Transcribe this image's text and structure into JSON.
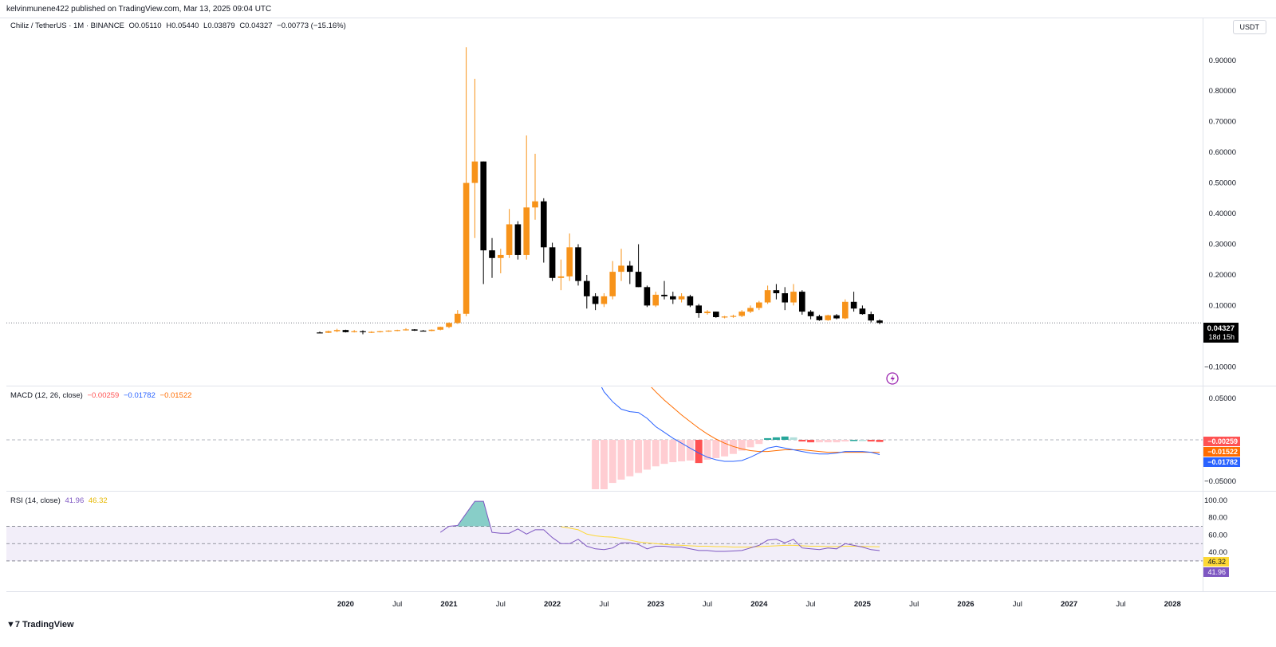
{
  "publisher": "kelvinmunene422 published on TradingView.com, Mar 13, 2025 09:04 UTC",
  "legend": {
    "symbol": "Chiliz / TetherUS · 1M · BINANCE",
    "open": "O0.05110",
    "high": "H0.05440",
    "low": "L0.03879",
    "close": "C0.04327",
    "change": "−0.00773 (−15.16%)"
  },
  "currency_button": "USDT",
  "price_tag": {
    "value": "0.04327",
    "countdown": "18d 15h"
  },
  "macd_legend": {
    "title": "MACD (12, 26, close)",
    "hist": "−0.00259",
    "macd": "−0.01782",
    "signal": "−0.01522"
  },
  "macd_tags": {
    "hist": "−0.00259",
    "signal": "−0.01522",
    "macd": "−0.01782"
  },
  "rsi_legend": {
    "title": "RSI (14, close)",
    "rsi": "41.96",
    "ma": "46.32"
  },
  "rsi_tags": {
    "ma": "46.32",
    "rsi": "41.96"
  },
  "footer_brand": "TradingView",
  "colors": {
    "up": "#f7931a",
    "down": "#000000",
    "macd_line": "#2962ff",
    "signal_line": "#ff6d00",
    "hist_neg": "#ff5252",
    "hist_neg_light": "#ffcdd2",
    "hist_pos": "#26a69a",
    "hist_pos_light": "#b2dfdb",
    "rsi_line": "#7e57c2",
    "rsi_ma": "#fdd835"
  },
  "chart_data": [
    {
      "type": "candlestick",
      "title": "Chiliz / TetherUS · 1M · BINANCE",
      "y_ticks": [
        "0.90000",
        "0.80000",
        "0.70000",
        "0.60000",
        "0.50000",
        "0.40000",
        "0.30000",
        "0.20000",
        "0.10000",
        "0.00000",
        "−0.10000"
      ],
      "x_ticks": [
        "2020",
        "Jul",
        "2021",
        "Jul",
        "2022",
        "Jul",
        "2023",
        "Jul",
        "2024",
        "Jul",
        "2025",
        "Jul",
        "2026",
        "Jul",
        "2027",
        "Jul",
        "2028"
      ],
      "ylim": [
        -0.12,
        0.98
      ],
      "candles": [
        {
          "d": "2019-10",
          "o": 0.012,
          "h": 0.015,
          "l": 0.01,
          "c": 0.011
        },
        {
          "d": "2019-11",
          "o": 0.011,
          "h": 0.018,
          "l": 0.01,
          "c": 0.016
        },
        {
          "d": "2019-12",
          "o": 0.016,
          "h": 0.024,
          "l": 0.013,
          "c": 0.02
        },
        {
          "d": "2020-01",
          "o": 0.02,
          "h": 0.021,
          "l": 0.012,
          "c": 0.013
        },
        {
          "d": "2020-02",
          "o": 0.013,
          "h": 0.02,
          "l": 0.012,
          "c": 0.016
        },
        {
          "d": "2020-03",
          "o": 0.016,
          "h": 0.019,
          "l": 0.006,
          "c": 0.013
        },
        {
          "d": "2020-04",
          "o": 0.013,
          "h": 0.016,
          "l": 0.01,
          "c": 0.014
        },
        {
          "d": "2020-05",
          "o": 0.014,
          "h": 0.017,
          "l": 0.012,
          "c": 0.016
        },
        {
          "d": "2020-06",
          "o": 0.016,
          "h": 0.019,
          "l": 0.014,
          "c": 0.018
        },
        {
          "d": "2020-07",
          "o": 0.018,
          "h": 0.021,
          "l": 0.016,
          "c": 0.02
        },
        {
          "d": "2020-08",
          "o": 0.02,
          "h": 0.026,
          "l": 0.018,
          "c": 0.022
        },
        {
          "d": "2020-09",
          "o": 0.022,
          "h": 0.023,
          "l": 0.017,
          "c": 0.018
        },
        {
          "d": "2020-10",
          "o": 0.018,
          "h": 0.02,
          "l": 0.016,
          "c": 0.017
        },
        {
          "d": "2020-11",
          "o": 0.017,
          "h": 0.022,
          "l": 0.016,
          "c": 0.021
        },
        {
          "d": "2020-12",
          "o": 0.021,
          "h": 0.031,
          "l": 0.019,
          "c": 0.03
        },
        {
          "d": "2021-01",
          "o": 0.03,
          "h": 0.045,
          "l": 0.026,
          "c": 0.043
        },
        {
          "d": "2021-02",
          "o": 0.043,
          "h": 0.085,
          "l": 0.04,
          "c": 0.073
        },
        {
          "d": "2021-03",
          "o": 0.073,
          "h": 0.943,
          "l": 0.065,
          "c": 0.5
        },
        {
          "d": "2021-04",
          "o": 0.5,
          "h": 0.84,
          "l": 0.32,
          "c": 0.57
        },
        {
          "d": "2021-05",
          "o": 0.57,
          "h": 0.57,
          "l": 0.17,
          "c": 0.28
        },
        {
          "d": "2021-06",
          "o": 0.28,
          "h": 0.32,
          "l": 0.19,
          "c": 0.255
        },
        {
          "d": "2021-07",
          "o": 0.255,
          "h": 0.285,
          "l": 0.205,
          "c": 0.265
        },
        {
          "d": "2021-08",
          "o": 0.265,
          "h": 0.415,
          "l": 0.255,
          "c": 0.365
        },
        {
          "d": "2021-09",
          "o": 0.365,
          "h": 0.375,
          "l": 0.25,
          "c": 0.265
        },
        {
          "d": "2021-10",
          "o": 0.265,
          "h": 0.655,
          "l": 0.25,
          "c": 0.42
        },
        {
          "d": "2021-11",
          "o": 0.42,
          "h": 0.595,
          "l": 0.38,
          "c": 0.44
        },
        {
          "d": "2021-12",
          "o": 0.44,
          "h": 0.45,
          "l": 0.24,
          "c": 0.29
        },
        {
          "d": "2022-01",
          "o": 0.29,
          "h": 0.305,
          "l": 0.18,
          "c": 0.19
        },
        {
          "d": "2022-02",
          "o": 0.19,
          "h": 0.25,
          "l": 0.15,
          "c": 0.195
        },
        {
          "d": "2022-03",
          "o": 0.195,
          "h": 0.335,
          "l": 0.18,
          "c": 0.29
        },
        {
          "d": "2022-04",
          "o": 0.29,
          "h": 0.3,
          "l": 0.165,
          "c": 0.18
        },
        {
          "d": "2022-05",
          "o": 0.18,
          "h": 0.2,
          "l": 0.09,
          "c": 0.13
        },
        {
          "d": "2022-06",
          "o": 0.13,
          "h": 0.14,
          "l": 0.085,
          "c": 0.105
        },
        {
          "d": "2022-07",
          "o": 0.105,
          "h": 0.14,
          "l": 0.095,
          "c": 0.13
        },
        {
          "d": "2022-08",
          "o": 0.13,
          "h": 0.245,
          "l": 0.12,
          "c": 0.21
        },
        {
          "d": "2022-09",
          "o": 0.21,
          "h": 0.285,
          "l": 0.18,
          "c": 0.23
        },
        {
          "d": "2022-10",
          "o": 0.23,
          "h": 0.245,
          "l": 0.17,
          "c": 0.21
        },
        {
          "d": "2022-11",
          "o": 0.21,
          "h": 0.3,
          "l": 0.16,
          "c": 0.16
        },
        {
          "d": "2022-12",
          "o": 0.16,
          "h": 0.165,
          "l": 0.095,
          "c": 0.1
        },
        {
          "d": "2023-01",
          "o": 0.1,
          "h": 0.145,
          "l": 0.095,
          "c": 0.135
        },
        {
          "d": "2023-02",
          "o": 0.135,
          "h": 0.18,
          "l": 0.12,
          "c": 0.13
        },
        {
          "d": "2023-03",
          "o": 0.13,
          "h": 0.145,
          "l": 0.105,
          "c": 0.12
        },
        {
          "d": "2023-04",
          "o": 0.12,
          "h": 0.14,
          "l": 0.11,
          "c": 0.13
        },
        {
          "d": "2023-05",
          "o": 0.13,
          "h": 0.135,
          "l": 0.095,
          "c": 0.1
        },
        {
          "d": "2023-06",
          "o": 0.1,
          "h": 0.105,
          "l": 0.06,
          "c": 0.075
        },
        {
          "d": "2023-07",
          "o": 0.075,
          "h": 0.085,
          "l": 0.07,
          "c": 0.08
        },
        {
          "d": "2023-08",
          "o": 0.08,
          "h": 0.08,
          "l": 0.06,
          "c": 0.062
        },
        {
          "d": "2023-09",
          "o": 0.062,
          "h": 0.066,
          "l": 0.058,
          "c": 0.064
        },
        {
          "d": "2023-10",
          "o": 0.064,
          "h": 0.07,
          "l": 0.06,
          "c": 0.066
        },
        {
          "d": "2023-11",
          "o": 0.066,
          "h": 0.085,
          "l": 0.062,
          "c": 0.08
        },
        {
          "d": "2023-12",
          "o": 0.08,
          "h": 0.1,
          "l": 0.075,
          "c": 0.092
        },
        {
          "d": "2024-01",
          "o": 0.092,
          "h": 0.115,
          "l": 0.085,
          "c": 0.11
        },
        {
          "d": "2024-02",
          "o": 0.11,
          "h": 0.165,
          "l": 0.105,
          "c": 0.15
        },
        {
          "d": "2024-03",
          "o": 0.15,
          "h": 0.17,
          "l": 0.12,
          "c": 0.14
        },
        {
          "d": "2024-04",
          "o": 0.14,
          "h": 0.16,
          "l": 0.085,
          "c": 0.11
        },
        {
          "d": "2024-05",
          "o": 0.11,
          "h": 0.17,
          "l": 0.1,
          "c": 0.145
        },
        {
          "d": "2024-06",
          "o": 0.145,
          "h": 0.15,
          "l": 0.07,
          "c": 0.08
        },
        {
          "d": "2024-07",
          "o": 0.08,
          "h": 0.085,
          "l": 0.055,
          "c": 0.065
        },
        {
          "d": "2024-08",
          "o": 0.065,
          "h": 0.07,
          "l": 0.05,
          "c": 0.052
        },
        {
          "d": "2024-09",
          "o": 0.052,
          "h": 0.07,
          "l": 0.05,
          "c": 0.068
        },
        {
          "d": "2024-10",
          "o": 0.068,
          "h": 0.072,
          "l": 0.055,
          "c": 0.058
        },
        {
          "d": "2024-11",
          "o": 0.058,
          "h": 0.12,
          "l": 0.055,
          "c": 0.112
        },
        {
          "d": "2024-12",
          "o": 0.112,
          "h": 0.145,
          "l": 0.08,
          "c": 0.09
        },
        {
          "d": "2025-01",
          "o": 0.09,
          "h": 0.1,
          "l": 0.07,
          "c": 0.072
        },
        {
          "d": "2025-02",
          "o": 0.072,
          "h": 0.08,
          "l": 0.045,
          "c": 0.051
        },
        {
          "d": "2025-03",
          "o": 0.0511,
          "h": 0.0544,
          "l": 0.03879,
          "c": 0.04327
        }
      ],
      "last_price": 0.04327
    },
    {
      "type": "macd",
      "title": "MACD (12, 26, close)",
      "y_ticks": [
        "0.05000",
        "−0.05000"
      ],
      "ylim": [
        -0.068,
        0.068
      ],
      "months": [
        "2022-06",
        "2022-07",
        "2022-08",
        "2022-09",
        "2022-10",
        "2022-11",
        "2022-12",
        "2023-01",
        "2023-02",
        "2023-03",
        "2023-04",
        "2023-05",
        "2023-06",
        "2023-07",
        "2023-08",
        "2023-09",
        "2023-10",
        "2023-11",
        "2023-12",
        "2024-01",
        "2024-02",
        "2024-03",
        "2024-04",
        "2024-05",
        "2024-06",
        "2024-07",
        "2024-08",
        "2024-09",
        "2024-10",
        "2024-11",
        "2024-12",
        "2025-01",
        "2025-02",
        "2025-03"
      ],
      "macd": [
        0.078,
        0.058,
        0.046,
        0.037,
        0.034,
        0.033,
        0.026,
        0.016,
        0.009,
        0.002,
        -0.004,
        -0.01,
        -0.016,
        -0.021,
        -0.024,
        -0.026,
        -0.026,
        -0.025,
        -0.021,
        -0.016,
        -0.01,
        -0.008,
        -0.01,
        -0.012,
        -0.014,
        -0.016,
        -0.017,
        -0.017,
        -0.016,
        -0.014,
        -0.014,
        -0.014,
        -0.015,
        -0.0178
      ],
      "signal": [
        0.16,
        0.139,
        0.12,
        0.105,
        0.092,
        0.08,
        0.069,
        0.058,
        0.048,
        0.039,
        0.03,
        0.022,
        0.014,
        0.007,
        0.001,
        -0.004,
        -0.008,
        -0.011,
        -0.013,
        -0.014,
        -0.014,
        -0.013,
        -0.012,
        -0.012,
        -0.012,
        -0.013,
        -0.014,
        -0.015,
        -0.015,
        -0.015,
        -0.015,
        -0.015,
        -0.015,
        -0.01522
      ],
      "histogram": [
        -0.068,
        -0.061,
        -0.052,
        -0.048,
        -0.044,
        -0.04,
        -0.036,
        -0.032,
        -0.029,
        -0.027,
        -0.026,
        -0.025,
        -0.028,
        -0.024,
        -0.022,
        -0.02,
        -0.017,
        -0.013,
        -0.009,
        -0.005,
        0.002,
        0.003,
        0.004,
        0.003,
        -0.002,
        -0.003,
        -0.003,
        -0.003,
        -0.003,
        -0.002,
        0.0,
        0.0,
        -0.002,
        -0.00259
      ]
    },
    {
      "type": "rsi",
      "title": "RSI (14, close)",
      "y_ticks": [
        "100.00",
        "80.00",
        "60.00",
        "40.00"
      ],
      "ylim": [
        20,
        105
      ],
      "bands": [
        70,
        50,
        30
      ],
      "months": [
        "2020-12",
        "2021-01",
        "2021-02",
        "2021-03",
        "2021-04",
        "2021-05",
        "2021-06",
        "2021-07",
        "2021-08",
        "2021-09",
        "2021-10",
        "2021-11",
        "2021-12",
        "2022-01",
        "2022-02",
        "2022-03",
        "2022-04",
        "2022-05",
        "2022-06",
        "2022-07",
        "2022-08",
        "2022-09",
        "2022-10",
        "2022-11",
        "2022-12",
        "2023-01",
        "2023-02",
        "2023-03",
        "2023-04",
        "2023-05",
        "2023-06",
        "2023-07",
        "2023-08",
        "2023-09",
        "2023-10",
        "2023-11",
        "2023-12",
        "2024-01",
        "2024-02",
        "2024-03",
        "2024-04",
        "2024-05",
        "2024-06",
        "2024-07",
        "2024-08",
        "2024-09",
        "2024-10",
        "2024-11",
        "2024-12",
        "2025-01",
        "2025-02",
        "2025-03"
      ],
      "rsi": [
        63,
        70,
        71,
        85,
        99,
        99,
        63,
        62,
        62,
        67,
        61,
        66,
        66,
        57,
        50,
        50,
        55,
        47,
        44,
        43,
        45,
        51,
        51,
        49,
        44,
        47,
        47,
        46,
        46,
        44,
        42,
        42,
        41,
        41,
        41.5,
        42,
        45,
        48,
        54,
        55,
        51,
        55,
        45,
        44,
        43,
        45,
        44,
        50,
        48,
        46,
        43,
        41.96
      ],
      "rsi_ma": [
        null,
        null,
        null,
        null,
        null,
        null,
        null,
        null,
        null,
        null,
        null,
        null,
        null,
        null,
        69.5,
        68,
        66,
        61,
        59,
        58,
        57.5,
        56,
        54,
        52,
        51,
        50,
        49,
        48.5,
        48,
        47.5,
        47,
        47,
        46.5,
        46.5,
        46,
        46,
        46,
        46.5,
        47,
        47.5,
        48,
        48,
        47.5,
        47,
        47,
        46.5,
        46.5,
        47,
        47,
        46.8,
        46.5,
        46.32
      ]
    }
  ]
}
